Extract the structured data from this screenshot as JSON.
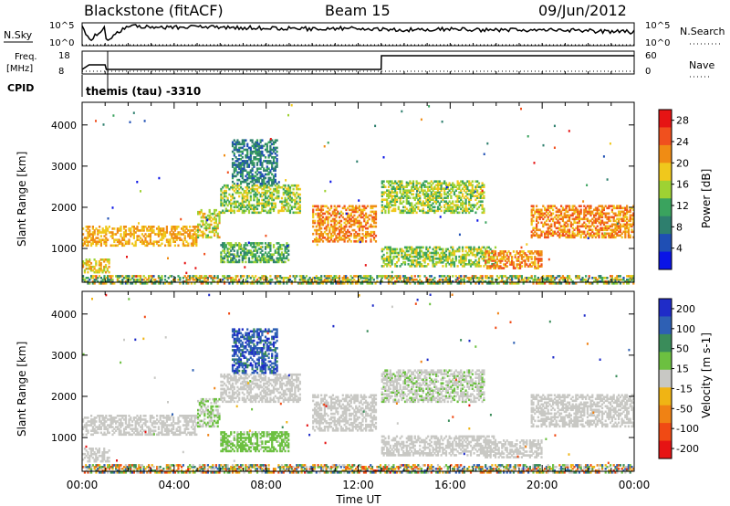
{
  "header": {
    "station": "Blackstone (fitACF)",
    "beam": "Beam 15",
    "date": "09/Jun/2012"
  },
  "panel_labels": {
    "nsky": "N.Sky",
    "nsearch": "N.Search",
    "freq_top": "Freq.",
    "freq_unit": "[MHz]",
    "nave": "Nave",
    "cpid": "CPID",
    "cpid_value": "themis (tau) -3310"
  },
  "noise_axis": {
    "left_ticks": [
      "10^5",
      "10^0"
    ],
    "right_ticks": [
      "10^5",
      "10^0"
    ]
  },
  "freq_axis": {
    "left_ticks": [
      "18",
      "8"
    ],
    "right_ticks": [
      "60",
      "0"
    ]
  },
  "colors": {
    "power_scale": [
      "#0a14e6",
      "#1f4fb4",
      "#2e7f6e",
      "#3aa35e",
      "#9ed233",
      "#f0c81c",
      "#f08c14",
      "#f0501e",
      "#e61414"
    ],
    "velocity_scale": [
      "#1f2cc8",
      "#2e60b4",
      "#3a8c5a",
      "#6cc040",
      "#c8c8c4",
      "#f0b414",
      "#f08214",
      "#f04a14",
      "#e61414"
    ]
  },
  "chart_data": [
    {
      "type": "line",
      "title": "N.Sky / N.Search noise",
      "x_range": [
        "00:00",
        "24:00"
      ],
      "series": [
        {
          "name": "N.Sky",
          "x": [
            0,
            0.3,
            1,
            1.05,
            2,
            4,
            6,
            8,
            10,
            12,
            14,
            16,
            18,
            20,
            22,
            24
          ],
          "y_frac": [
            0.85,
            0.2,
            0.85,
            0.2,
            0.88,
            0.8,
            0.82,
            0.76,
            0.74,
            0.77,
            0.7,
            0.72,
            0.68,
            0.7,
            0.65,
            0.6
          ]
        }
      ]
    },
    {
      "type": "line",
      "title": "Frequency / Nave",
      "x_range": [
        "00:00",
        "24:00"
      ],
      "series": [
        {
          "name": "Freq.",
          "x": [
            0,
            0.3,
            1,
            1.05,
            13,
            13.01,
            24
          ],
          "y": [
            10,
            12,
            12,
            10,
            10,
            16,
            16
          ]
        }
      ]
    },
    {
      "type": "heatmap",
      "title": "Power",
      "xlabel": "",
      "ylabel": "Slant Range [km]",
      "x_ticks": [
        "00:00",
        "04:00",
        "08:00",
        "12:00",
        "16:00",
        "20:00",
        "00:00"
      ],
      "y_ticks": [
        "1000",
        "2000",
        "3000",
        "4000"
      ],
      "ylim": [
        180,
        4550
      ],
      "colorbar": {
        "label": "Power [dB]",
        "ticks": [
          "4",
          "8",
          "12",
          "16",
          "20",
          "24",
          "28"
        ],
        "range": [
          0,
          30
        ]
      },
      "regions": [
        {
          "t0": 0.0,
          "t1": 5.0,
          "r0": 1100,
          "r1": 1600,
          "values": [
            18,
            22
          ]
        },
        {
          "t0": 5.0,
          "t1": 6.0,
          "r0": 1300,
          "r1": 2000,
          "values": [
            12,
            22
          ]
        },
        {
          "t0": 6.0,
          "t1": 9.5,
          "r0": 1900,
          "r1": 2600,
          "values": [
            10,
            20
          ]
        },
        {
          "t0": 6.0,
          "t1": 9.0,
          "r0": 700,
          "r1": 1200,
          "values": [
            8,
            16
          ]
        },
        {
          "t0": 6.5,
          "t1": 8.5,
          "r0": 2600,
          "r1": 3700,
          "values": [
            4,
            12
          ]
        },
        {
          "t0": 0.0,
          "t1": 1.2,
          "r0": 450,
          "r1": 800,
          "values": [
            14,
            22
          ]
        },
        {
          "t0": 10.0,
          "t1": 12.8,
          "r0": 1200,
          "r1": 2100,
          "values": [
            18,
            26
          ]
        },
        {
          "t0": 13.0,
          "t1": 17.5,
          "r0": 1900,
          "r1": 2700,
          "values": [
            10,
            20
          ]
        },
        {
          "t0": 13.0,
          "t1": 18.0,
          "r0": 600,
          "r1": 1100,
          "values": [
            10,
            20
          ]
        },
        {
          "t0": 17.5,
          "t1": 20.0,
          "r0": 550,
          "r1": 1000,
          "values": [
            18,
            26
          ]
        },
        {
          "t0": 19.5,
          "t1": 24.0,
          "r0": 1300,
          "r1": 2100,
          "values": [
            18,
            26
          ]
        },
        {
          "t0": 0.0,
          "t1": 24.0,
          "r0": 180,
          "r1": 400,
          "values": [
            6,
            24
          ]
        }
      ]
    },
    {
      "type": "heatmap",
      "title": "Velocity",
      "xlabel": "Time UT",
      "ylabel": "Slant Range [km]",
      "x_ticks": [
        "00:00",
        "04:00",
        "08:00",
        "12:00",
        "16:00",
        "20:00",
        "00:00"
      ],
      "y_ticks": [
        "1000",
        "2000",
        "3000",
        "4000"
      ],
      "ylim": [
        180,
        4550
      ],
      "colorbar": {
        "label": "Velocity [m s-1]",
        "ticks": [
          "200",
          "100",
          "50",
          "15",
          "-15",
          "-50",
          "-100",
          "-200"
        ],
        "range": [
          -250,
          250
        ]
      },
      "regions": [
        {
          "t0": 0.0,
          "t1": 5.0,
          "r0": 1100,
          "r1": 1600,
          "values": [
            -10,
            10
          ]
        },
        {
          "t0": 5.0,
          "t1": 6.0,
          "r0": 1300,
          "r1": 2000,
          "values": [
            -10,
            60
          ]
        },
        {
          "t0": 6.0,
          "t1": 9.5,
          "r0": 1900,
          "r1": 2600,
          "values": [
            -10,
            10
          ]
        },
        {
          "t0": 6.0,
          "t1": 9.0,
          "r0": 700,
          "r1": 1200,
          "values": [
            20,
            80
          ]
        },
        {
          "t0": 6.5,
          "t1": 8.5,
          "r0": 2600,
          "r1": 3700,
          "values": [
            120,
            220
          ]
        },
        {
          "t0": 0.0,
          "t1": 1.2,
          "r0": 450,
          "r1": 800,
          "values": [
            -10,
            10
          ]
        },
        {
          "t0": 10.0,
          "t1": 12.8,
          "r0": 1200,
          "r1": 2100,
          "values": [
            -10,
            10
          ]
        },
        {
          "t0": 13.0,
          "t1": 17.5,
          "r0": 1900,
          "r1": 2700,
          "values": [
            -10,
            40
          ]
        },
        {
          "t0": 13.0,
          "t1": 18.0,
          "r0": 600,
          "r1": 1100,
          "values": [
            -10,
            10
          ]
        },
        {
          "t0": 17.5,
          "t1": 20.0,
          "r0": 550,
          "r1": 1000,
          "values": [
            -10,
            10
          ]
        },
        {
          "t0": 19.5,
          "t1": 24.0,
          "r0": 1300,
          "r1": 2100,
          "values": [
            -10,
            10
          ]
        },
        {
          "t0": 0.0,
          "t1": 24.0,
          "r0": 180,
          "r1": 400,
          "values": [
            -200,
            200
          ]
        }
      ]
    }
  ]
}
